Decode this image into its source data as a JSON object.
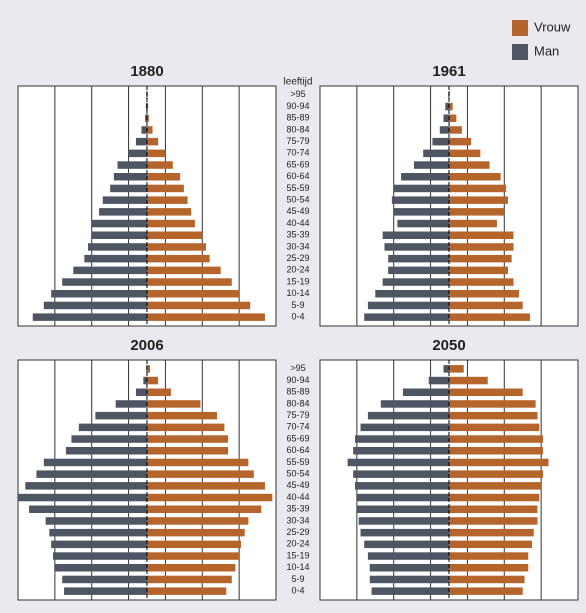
{
  "age_label": "leeftijd",
  "chart_data": [
    {
      "type": "pyramid",
      "title": "1880",
      "categories": [
        ">95",
        "90-94",
        "85-89",
        "80-84",
        "75-79",
        "70-74",
        "65-69",
        "60-64",
        "55-59",
        "50-54",
        "45-49",
        "40-44",
        "35-39",
        "30-34",
        "25-29",
        "20-24",
        "15-19",
        "10-14",
        "5-9",
        "0-4"
      ],
      "xlim": [
        -3.5,
        3.5
      ],
      "xticks": [
        -2.5,
        -1.5,
        -0.5,
        0.5,
        1.5,
        2.5
      ],
      "series": [
        {
          "name": "Vrouw",
          "color": "#b5642b",
          "values": [
            0.02,
            0.03,
            0.05,
            0.15,
            0.3,
            0.5,
            0.7,
            0.9,
            1.0,
            1.1,
            1.2,
            1.3,
            1.5,
            1.6,
            1.7,
            2.0,
            2.3,
            2.5,
            2.8,
            3.2
          ]
        },
        {
          "name": "Man",
          "color": "#4e5563",
          "values": [
            0.02,
            0.03,
            0.05,
            0.15,
            0.3,
            0.5,
            0.8,
            0.9,
            1.0,
            1.2,
            1.3,
            1.5,
            1.5,
            1.6,
            1.7,
            2.0,
            2.3,
            2.6,
            2.8,
            3.1
          ]
        }
      ]
    },
    {
      "type": "pyramid",
      "title": "1961",
      "xlim": [
        -3.5,
        3.5
      ],
      "xticks": [
        -2.5,
        -1.5,
        -0.5,
        0.5,
        1.5,
        2.5
      ],
      "series": [
        {
          "color": "#b5642b",
          "values": [
            0.02,
            0.1,
            0.2,
            0.35,
            0.6,
            0.85,
            1.1,
            1.4,
            1.55,
            1.6,
            1.5,
            1.3,
            1.75,
            1.75,
            1.7,
            1.6,
            1.75,
            1.9,
            2.0,
            2.2
          ]
        },
        {
          "color": "#4e5563",
          "values": [
            0.02,
            0.1,
            0.15,
            0.25,
            0.45,
            0.7,
            0.95,
            1.3,
            1.5,
            1.55,
            1.5,
            1.4,
            1.8,
            1.75,
            1.65,
            1.65,
            1.8,
            2.0,
            2.2,
            2.3
          ]
        }
      ]
    },
    {
      "type": "pyramid",
      "title": "2006",
      "categories": [
        ">95",
        "90-94",
        "85-89",
        "80-84",
        "75-79",
        "70-74",
        "65-69",
        "60-64",
        "55-59",
        "50-54",
        "45-49",
        "40-44",
        "35-39",
        "30-34",
        "25-29",
        "20-24",
        "15-19",
        "10-14",
        "5-9",
        "0-4"
      ],
      "xlim": [
        -3.5,
        3.5
      ],
      "xticks": [
        -2.5,
        -1.5,
        -0.5,
        0.5,
        1.5,
        2.5
      ],
      "series": [
        {
          "color": "#b5642b",
          "values": [
            0.08,
            0.3,
            0.65,
            1.45,
            1.9,
            2.1,
            2.2,
            2.2,
            2.75,
            2.9,
            3.2,
            3.4,
            3.1,
            2.75,
            2.65,
            2.55,
            2.5,
            2.4,
            2.3,
            2.15
          ]
        },
        {
          "color": "#4e5563",
          "values": [
            0.02,
            0.1,
            0.3,
            0.85,
            1.4,
            1.85,
            2.05,
            2.2,
            2.8,
            3.0,
            3.3,
            3.5,
            3.2,
            2.75,
            2.65,
            2.6,
            2.55,
            2.5,
            2.3,
            2.25
          ]
        }
      ]
    },
    {
      "type": "pyramid",
      "title": "2050",
      "xlim": [
        -3.5,
        3.5
      ],
      "xticks": [
        -2.5,
        -1.5,
        -0.5,
        0.5,
        1.5,
        2.5
      ],
      "series": [
        {
          "color": "#b5642b",
          "values": [
            0.4,
            1.05,
            2.0,
            2.35,
            2.4,
            2.45,
            2.55,
            2.55,
            2.7,
            2.55,
            2.5,
            2.45,
            2.4,
            2.4,
            2.3,
            2.25,
            2.15,
            2.15,
            2.05,
            2.0
          ]
        },
        {
          "color": "#4e5563",
          "values": [
            0.15,
            0.55,
            1.25,
            1.85,
            2.2,
            2.4,
            2.55,
            2.6,
            2.75,
            2.6,
            2.55,
            2.5,
            2.5,
            2.45,
            2.4,
            2.3,
            2.2,
            2.15,
            2.15,
            2.1
          ]
        }
      ]
    }
  ]
}
